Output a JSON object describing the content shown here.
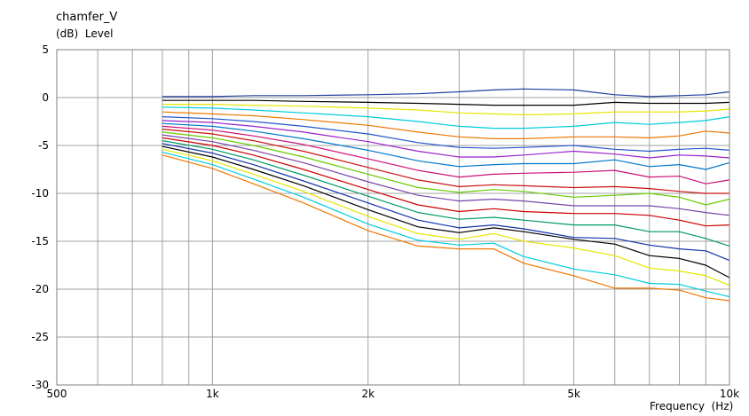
{
  "title": "chamfer_V",
  "unit_label": "(dB)  Level",
  "xaxis_label": "Frequency  (Hz)",
  "chart_data": {
    "type": "line",
    "x_scale": "log",
    "xlim": [
      500,
      10000
    ],
    "ylim": [
      -30,
      5
    ],
    "grid": true,
    "xlabel": "Frequency  (Hz)",
    "ylabel": "(dB)  Level",
    "title": "chamfer_V",
    "x_ticks": [
      {
        "value": 500,
        "label": "500"
      },
      {
        "value": 1000,
        "label": "1k"
      },
      {
        "value": 2000,
        "label": "2k"
      },
      {
        "value": 5000,
        "label": "5k"
      },
      {
        "value": 10000,
        "label": "10k"
      }
    ],
    "y_ticks": [
      5,
      0,
      -5,
      -10,
      -15,
      -20,
      -25,
      -30
    ],
    "x": [
      800,
      1000,
      1200,
      1500,
      2000,
      2500,
      3000,
      3500,
      4000,
      5000,
      6000,
      7000,
      8000,
      9000,
      10000
    ],
    "series": [
      {
        "color": "#1f3f9f",
        "values": [
          0.1,
          0.1,
          0.2,
          0.2,
          0.3,
          0.4,
          0.6,
          0.8,
          0.9,
          0.8,
          0.3,
          0.1,
          0.2,
          0.3,
          0.6
        ]
      },
      {
        "color": "#000000",
        "values": [
          -0.3,
          -0.3,
          -0.3,
          -0.4,
          -0.5,
          -0.6,
          -0.7,
          -0.8,
          -0.8,
          -0.8,
          -0.5,
          -0.6,
          -0.6,
          -0.6,
          -0.5
        ]
      },
      {
        "color": "#e6e600",
        "values": [
          -0.7,
          -0.7,
          -0.8,
          -0.9,
          -1.1,
          -1.3,
          -1.6,
          -1.7,
          -1.8,
          -1.7,
          -1.5,
          -1.5,
          -1.5,
          -1.4,
          -1.2
        ]
      },
      {
        "color": "#00ccdd",
        "values": [
          -1.0,
          -1.1,
          -1.3,
          -1.6,
          -2.0,
          -2.5,
          -3.0,
          -3.2,
          -3.2,
          -3.0,
          -2.6,
          -2.8,
          -2.6,
          -2.4,
          -2.0
        ]
      },
      {
        "color": "#ee7700",
        "values": [
          -1.5,
          -1.7,
          -1.9,
          -2.3,
          -2.9,
          -3.6,
          -4.1,
          -4.3,
          -4.3,
          -4.1,
          -4.1,
          -4.2,
          -4.0,
          -3.5,
          -3.7
        ]
      },
      {
        "color": "#2255cc",
        "values": [
          -2.0,
          -2.2,
          -2.5,
          -3.0,
          -3.8,
          -4.7,
          -5.2,
          -5.3,
          -5.2,
          -5.0,
          -5.4,
          -5.6,
          -5.4,
          -5.3,
          -5.5
        ]
      },
      {
        "color": "#9922cc",
        "values": [
          -2.4,
          -2.6,
          -3.0,
          -3.6,
          -4.6,
          -5.6,
          -6.2,
          -6.2,
          -6.0,
          -5.6,
          -5.9,
          -6.3,
          -6.0,
          -6.1,
          -6.3
        ]
      },
      {
        "color": "#0077cc",
        "values": [
          -2.7,
          -3.0,
          -3.5,
          -4.3,
          -5.5,
          -6.6,
          -7.2,
          -7.0,
          -6.9,
          -6.9,
          -6.5,
          -7.2,
          -7.0,
          -7.5,
          -6.8
        ]
      },
      {
        "color": "#cc1177",
        "values": [
          -3.0,
          -3.4,
          -4.0,
          -4.9,
          -6.4,
          -7.6,
          -8.3,
          -8.0,
          -7.9,
          -7.8,
          -7.6,
          -8.3,
          -8.2,
          -9.0,
          -8.6
        ]
      },
      {
        "color": "#cc1111",
        "values": [
          -3.3,
          -3.8,
          -4.5,
          -5.6,
          -7.3,
          -8.6,
          -9.3,
          -9.1,
          -9.2,
          -9.4,
          -9.3,
          -9.5,
          -9.8,
          -10.0,
          -10.0
        ]
      },
      {
        "color": "#66cc00",
        "values": [
          -3.6,
          -4.2,
          -5.0,
          -6.2,
          -8.0,
          -9.4,
          -9.9,
          -9.6,
          -9.8,
          -10.4,
          -10.2,
          -10.0,
          -10.4,
          -11.2,
          -10.6
        ]
      },
      {
        "color": "#7744aa",
        "values": [
          -3.9,
          -4.6,
          -5.5,
          -6.8,
          -8.8,
          -10.2,
          -10.8,
          -10.6,
          -10.8,
          -11.3,
          -11.3,
          -11.3,
          -11.6,
          -12.0,
          -12.3
        ]
      },
      {
        "color": "#cc0000",
        "values": [
          -4.2,
          -5.0,
          -6.0,
          -7.5,
          -9.6,
          -11.2,
          -11.9,
          -11.6,
          -11.9,
          -12.1,
          -12.1,
          -12.3,
          -12.8,
          -13.4,
          -13.3
        ]
      },
      {
        "color": "#009966",
        "values": [
          -4.5,
          -5.4,
          -6.5,
          -8.1,
          -10.3,
          -12.0,
          -12.7,
          -12.5,
          -12.8,
          -13.3,
          -13.3,
          -14.0,
          -14.0,
          -14.7,
          -15.5
        ]
      },
      {
        "color": "#1133aa",
        "values": [
          -4.8,
          -5.8,
          -7.0,
          -8.7,
          -11.0,
          -12.8,
          -13.6,
          -13.3,
          -13.7,
          -14.6,
          -14.7,
          -15.4,
          -15.8,
          -16.0,
          -17.0
        ]
      },
      {
        "color": "#000000",
        "values": [
          -5.1,
          -6.2,
          -7.5,
          -9.2,
          -11.7,
          -13.5,
          -14.1,
          -13.6,
          -14.0,
          -14.8,
          -15.3,
          -16.5,
          -16.8,
          -17.5,
          -18.8
        ]
      },
      {
        "color": "#e6e600",
        "values": [
          -5.4,
          -6.6,
          -8.0,
          -9.8,
          -12.4,
          -14.2,
          -14.8,
          -14.2,
          -15.0,
          -15.7,
          -16.5,
          -17.8,
          -18.1,
          -18.6,
          -19.6
        ]
      },
      {
        "color": "#00ccdd",
        "values": [
          -5.7,
          -7.0,
          -8.5,
          -10.4,
          -13.2,
          -14.9,
          -15.4,
          -15.2,
          -16.6,
          -17.9,
          -18.5,
          -19.4,
          -19.5,
          -20.2,
          -20.8
        ]
      },
      {
        "color": "#ee7700",
        "values": [
          -6.0,
          -7.4,
          -9.0,
          -11.0,
          -13.9,
          -15.5,
          -15.8,
          -15.8,
          -17.3,
          -18.6,
          -19.9,
          -19.9,
          -20.1,
          -20.9,
          -21.2
        ]
      }
    ]
  }
}
